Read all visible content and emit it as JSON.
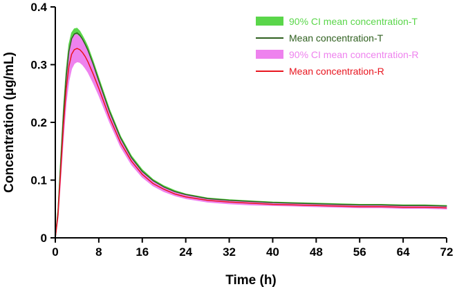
{
  "chart_data": {
    "type": "line",
    "title": "",
    "xlabel": "Time (h)",
    "ylabel": "Concentration (μg/mL)",
    "xlim": [
      0,
      72
    ],
    "ylim": [
      0,
      0.4
    ],
    "x_ticks": [
      0,
      8,
      16,
      24,
      32,
      40,
      48,
      56,
      64,
      72
    ],
    "x_tick_labels": [
      "0",
      "8",
      "16",
      "24",
      "32",
      "40",
      "48",
      "56",
      "64",
      "72"
    ],
    "y_ticks": [
      0,
      0.1,
      0.2,
      0.3,
      0.4
    ],
    "y_tick_labels": [
      "0",
      "0.1",
      "0.2",
      "0.3",
      "0.4"
    ],
    "grid": false,
    "legend_position": "top-right",
    "x": [
      0,
      0.5,
      1,
      1.5,
      2,
      2.5,
      3,
      3.5,
      4,
      4.5,
      5,
      5.5,
      6,
      7,
      8,
      10,
      12,
      14,
      16,
      18,
      20,
      22,
      24,
      28,
      32,
      36,
      40,
      44,
      48,
      52,
      56,
      60,
      64,
      68,
      72
    ],
    "series": [
      {
        "name": "90% CI mean concentration-T",
        "kind": "band",
        "color": "#5ad64a",
        "lower": [
          0,
          0.04,
          0.12,
          0.2,
          0.265,
          0.31,
          0.335,
          0.345,
          0.348,
          0.345,
          0.338,
          0.33,
          0.32,
          0.295,
          0.268,
          0.215,
          0.17,
          0.137,
          0.113,
          0.097,
          0.086,
          0.078,
          0.073,
          0.066,
          0.063,
          0.061,
          0.06,
          0.059,
          0.058,
          0.057,
          0.056,
          0.056,
          0.055,
          0.055,
          0.054
        ],
        "upper": [
          0,
          0.05,
          0.14,
          0.225,
          0.29,
          0.335,
          0.355,
          0.362,
          0.363,
          0.358,
          0.35,
          0.341,
          0.331,
          0.305,
          0.277,
          0.222,
          0.176,
          0.142,
          0.118,
          0.101,
          0.09,
          0.082,
          0.076,
          0.069,
          0.066,
          0.064,
          0.062,
          0.061,
          0.06,
          0.059,
          0.058,
          0.058,
          0.057,
          0.057,
          0.056
        ]
      },
      {
        "name": "Mean concentration-T",
        "kind": "line",
        "color": "#2e5f1e",
        "values": [
          0,
          0.045,
          0.13,
          0.212,
          0.278,
          0.323,
          0.345,
          0.353,
          0.355,
          0.351,
          0.344,
          0.335,
          0.325,
          0.3,
          0.272,
          0.218,
          0.173,
          0.139,
          0.115,
          0.099,
          0.088,
          0.08,
          0.075,
          0.068,
          0.065,
          0.063,
          0.061,
          0.06,
          0.059,
          0.058,
          0.057,
          0.057,
          0.056,
          0.056,
          0.055
        ]
      },
      {
        "name": "90% CI mean concentration-R",
        "kind": "band",
        "color": "#ee82ee",
        "lower": [
          0,
          0.035,
          0.105,
          0.175,
          0.235,
          0.272,
          0.293,
          0.302,
          0.305,
          0.304,
          0.3,
          0.294,
          0.287,
          0.268,
          0.247,
          0.2,
          0.158,
          0.127,
          0.105,
          0.09,
          0.08,
          0.073,
          0.068,
          0.062,
          0.059,
          0.057,
          0.056,
          0.055,
          0.054,
          0.053,
          0.052,
          0.052,
          0.051,
          0.051,
          0.05
        ],
        "upper": [
          0,
          0.045,
          0.13,
          0.215,
          0.28,
          0.325,
          0.345,
          0.352,
          0.352,
          0.348,
          0.342,
          0.333,
          0.323,
          0.298,
          0.271,
          0.217,
          0.172,
          0.138,
          0.114,
          0.098,
          0.087,
          0.079,
          0.074,
          0.067,
          0.064,
          0.062,
          0.06,
          0.059,
          0.058,
          0.057,
          0.056,
          0.056,
          0.055,
          0.055,
          0.054
        ]
      },
      {
        "name": "Mean concentration-R",
        "kind": "line",
        "color": "#e8141e",
        "values": [
          0,
          0.04,
          0.117,
          0.195,
          0.257,
          0.297,
          0.318,
          0.326,
          0.328,
          0.326,
          0.321,
          0.314,
          0.305,
          0.283,
          0.259,
          0.208,
          0.165,
          0.133,
          0.11,
          0.094,
          0.084,
          0.076,
          0.071,
          0.065,
          0.062,
          0.06,
          0.058,
          0.057,
          0.056,
          0.055,
          0.054,
          0.054,
          0.053,
          0.053,
          0.052
        ]
      }
    ]
  }
}
